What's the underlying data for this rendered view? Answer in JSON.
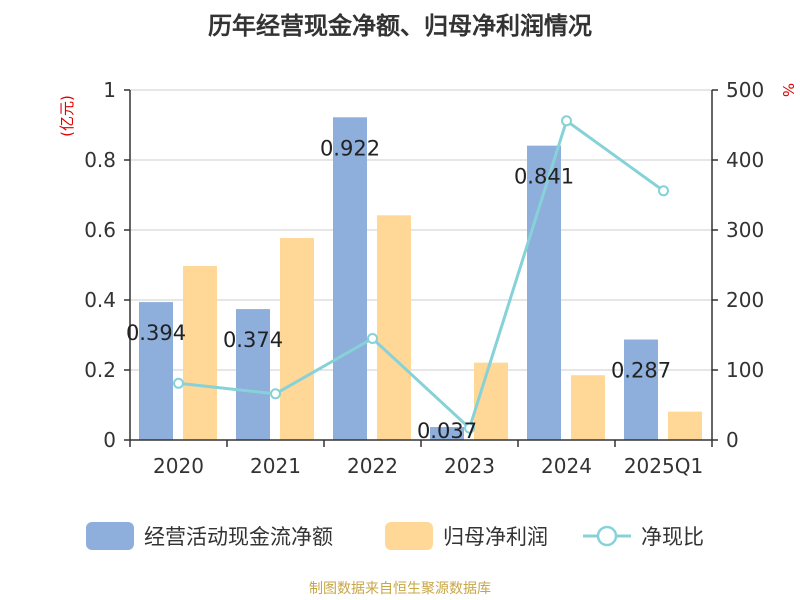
{
  "title": "历年经营现金净额、归母净利润情况",
  "source": "制图数据来自恒生聚源数据库",
  "colors": {
    "cash_flow": "#8eaedb",
    "net_profit": "#ffd796",
    "ratio": "#86d2d8",
    "axis": "#333333",
    "unit": "#e00000",
    "grid": "#cccccc",
    "source": "#c8a646"
  },
  "chart_data": {
    "type": "bar",
    "title": "历年经营现金净额、归母净利润情况",
    "categories": [
      "2020",
      "2021",
      "2022",
      "2023",
      "2024",
      "2025Q1"
    ],
    "left_axis": {
      "unit_label": "(亿元)",
      "ylim": [
        0,
        1
      ],
      "ticks": [
        "0",
        "0.2",
        "0.4",
        "0.6",
        "0.8",
        "1"
      ]
    },
    "right_axis": {
      "unit_label": "%",
      "ylim": [
        0,
        500
      ],
      "ticks": [
        "0",
        "100",
        "200",
        "300",
        "400",
        "500"
      ]
    },
    "grid": true,
    "legend_position": "bottom",
    "series": [
      {
        "name": "经营活动现金流净额",
        "kind": "bar",
        "axis": "left",
        "values": [
          0.394,
          0.374,
          0.922,
          0.037,
          0.841,
          0.287
        ],
        "data_labels": [
          "0.394",
          "0.374",
          "0.922",
          "0.037",
          "0.841",
          "0.287"
        ]
      },
      {
        "name": "归母净利润",
        "kind": "bar",
        "axis": "left",
        "values": [
          0.497,
          0.577,
          0.642,
          0.221,
          0.185,
          0.081
        ]
      },
      {
        "name": "净现比",
        "kind": "line",
        "axis": "right",
        "values": [
          81,
          66,
          145,
          17,
          456,
          356
        ]
      }
    ]
  }
}
